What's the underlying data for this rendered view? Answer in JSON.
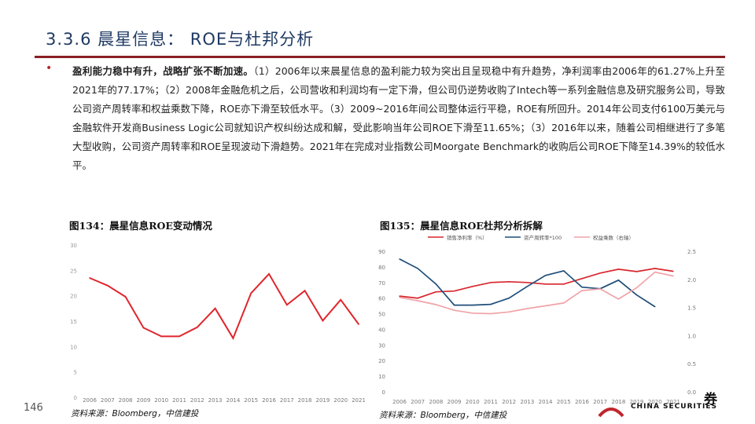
{
  "slide": {
    "title": "3.3.6 晨星信息： ROE与杜邦分析",
    "page_number": "146",
    "colors": {
      "title": "#1f3a63",
      "rule": "#8b1e24",
      "bullet": "#b3272d"
    }
  },
  "paragraph": {
    "lead": "盈利能力稳中有升，战略扩张不断加速。",
    "body": "（1）2006年以来晨星信息的盈利能力较为突出且呈现稳中有升趋势，净利润率由2006年的61.27%上升至2021年的77.17%；（2）2008年金融危机之后，公司营收和利润均有一定下滑，但公司仍逆势收购了Intech等一系列金融信息及研究服务公司，导致公司资产周转率和权益乘数下降，ROE亦下滑至较低水平。（3）2009~2016年间公司整体运行平稳，ROE有所回升。2014年公司支付6100万美元与金融软件开发商Business Logic公司就知识产权纠纷达成和解，受此影响当年公司ROE下滑至11.65%；（3）2016年以来，随着公司相继进行了多笔大型收购，公司资产周转率和ROE呈现波动下滑趋势。2021年在完成对业指数公司Moorgate Benchmark的收购后公司ROE下降至14.39%的较低水平。"
  },
  "figure_left": {
    "title": "图134：晨星信息ROE变动情况",
    "source": "资料来源：Bloomberg，中信建投"
  },
  "figure_right": {
    "title": "图135：晨星信息ROE杜邦分析拆解",
    "source": "资料来源：Bloomberg，中信建投"
  },
  "logo": {
    "text": "券",
    "subtext": "CHINA SECURITIES"
  },
  "chart_data": [
    {
      "type": "line",
      "title": "图134：晨星信息ROE变动情况",
      "x": [
        "2006",
        "2007",
        "2008",
        "2009",
        "2010",
        "2011",
        "2012",
        "2013",
        "2014",
        "2015",
        "2016",
        "2017",
        "2018",
        "2019",
        "2020",
        "2021"
      ],
      "y_ticks": [
        "0",
        "5",
        "10",
        "15",
        "20",
        "25",
        "30"
      ],
      "ylim": [
        0,
        30
      ],
      "series": [
        {
          "name": "ROE",
          "color": "#e0262c",
          "values": [
            23.5,
            22.0,
            19.8,
            13.7,
            12.0,
            12.0,
            13.8,
            17.5,
            11.65,
            20.5,
            24.3,
            18.2,
            21.0,
            15.1,
            19.2,
            14.39
          ]
        }
      ]
    },
    {
      "type": "line",
      "title": "图135：晨星信息ROE杜邦分析拆解",
      "x": [
        "2006",
        "2007",
        "2008",
        "2009",
        "2010",
        "2011",
        "2012",
        "2013",
        "2014",
        "2015",
        "2016",
        "2017",
        "2018",
        "2019",
        "2020",
        "2021"
      ],
      "y_ticks_left": [
        "0",
        "10",
        "20",
        "30",
        "40",
        "50",
        "60",
        "70",
        "80",
        "90"
      ],
      "ylim_left": [
        0,
        90
      ],
      "y_ticks_right": [
        "0.0",
        "0.5",
        "1.0",
        "1.5",
        "2.0",
        "2.5"
      ],
      "ylim_right": [
        0,
        2.5
      ],
      "series": [
        {
          "name": "销售净利率（%）",
          "axis": "left",
          "color": "#d8262c",
          "values": [
            61.27,
            60.0,
            64.0,
            64.5,
            67.5,
            70.0,
            70.5,
            70.0,
            69.0,
            69.0,
            72.5,
            76.0,
            78.5,
            77.0,
            79.0,
            77.17
          ]
        },
        {
          "name": "资产周转率*100",
          "axis": "left",
          "color": "#1f4e79",
          "values": [
            85.0,
            79.0,
            69.0,
            55.5,
            55.5,
            56.0,
            60.0,
            67.5,
            74.5,
            77.5,
            67.0,
            66.0,
            71.5,
            62.0,
            54.5,
            null
          ]
        },
        {
          "name": "权益乘数（右轴）",
          "axis": "right",
          "color": "#f0a3a8",
          "values": [
            1.68,
            1.62,
            1.55,
            1.45,
            1.4,
            1.39,
            1.42,
            1.48,
            1.53,
            1.58,
            1.8,
            1.83,
            1.65,
            1.85,
            2.13,
            2.06
          ]
        }
      ]
    }
  ]
}
